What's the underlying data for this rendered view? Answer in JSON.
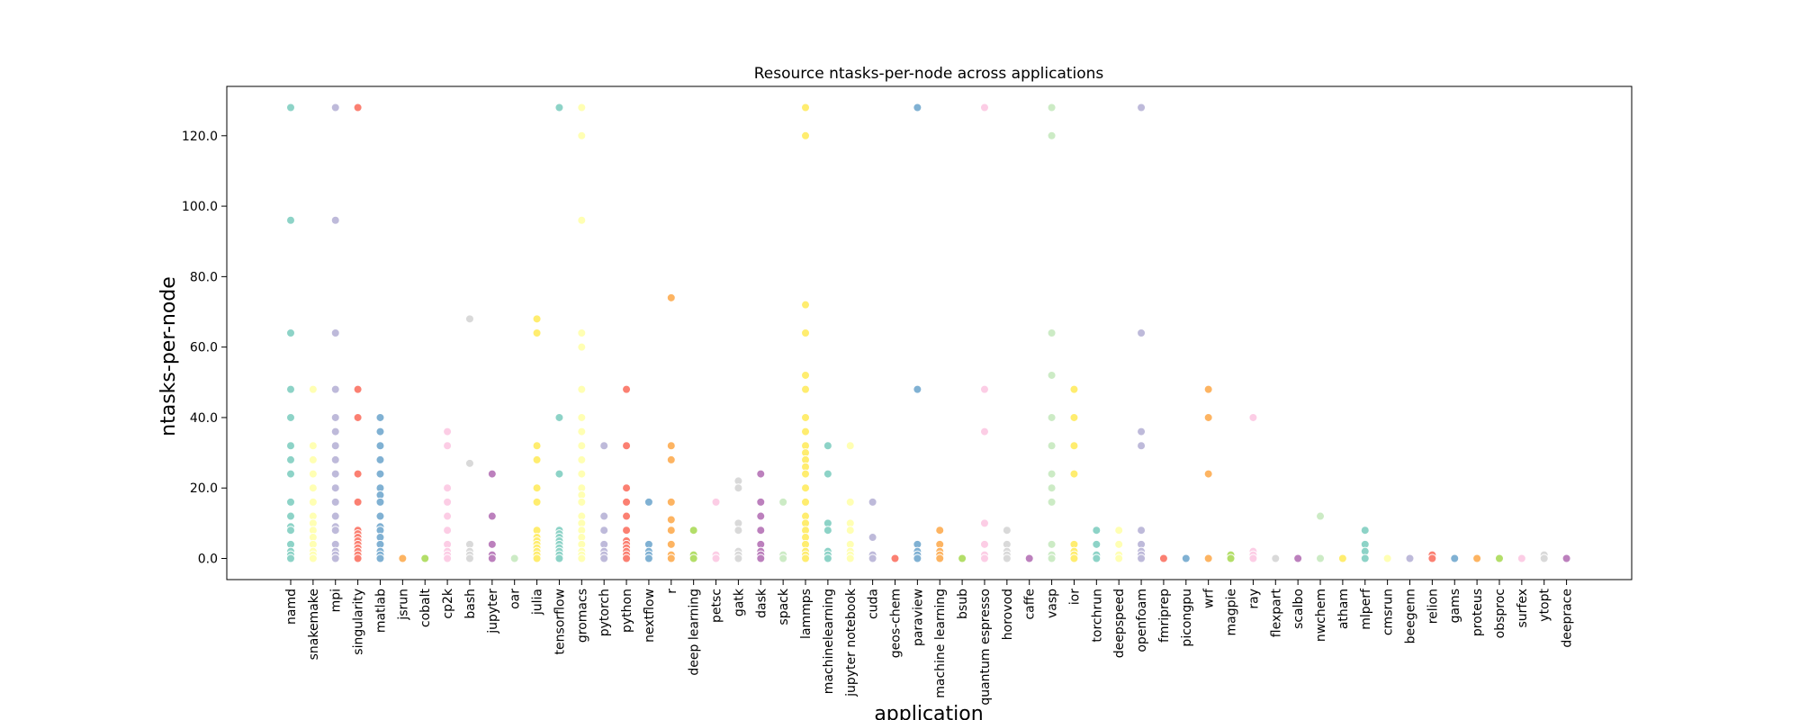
{
  "chart_data": {
    "type": "scatter",
    "title": "Resource ntasks-per-node across applications",
    "xlabel": "application",
    "ylabel": "ntasks-per-node",
    "ylim": [
      -6,
      134
    ],
    "yticks": [
      0,
      20,
      40,
      60,
      80,
      100,
      120
    ],
    "ytick_labels": [
      "0.0",
      "20.0",
      "40.0",
      "60.0",
      "80.0",
      "100.0",
      "120.0"
    ],
    "grid": false,
    "legend": "none",
    "palette": [
      "#8dd3c7",
      "#ffffb3",
      "#bebada",
      "#fb8072",
      "#80b1d3",
      "#fdb462",
      "#b3de69",
      "#fccde5",
      "#d9d9d9",
      "#bc80bd",
      "#ccebc5",
      "#ffed6f"
    ],
    "categories": [
      "namd",
      "snakemake",
      "mpi",
      "singularity",
      "matlab",
      "jsrun",
      "cobalt",
      "cp2k",
      "bash",
      "jupyter",
      "oar",
      "julia",
      "tensorflow",
      "gromacs",
      "pytorch",
      "python",
      "nextflow",
      "r",
      "deep learning",
      "petsc",
      "gatk",
      "dask",
      "spack",
      "lammps",
      "machinelearning",
      "jupyter notebook",
      "cuda",
      "geos-chem",
      "paraview",
      "machine learning",
      "bsub",
      "quantum espresso",
      "horovod",
      "caffe",
      "vasp",
      "ior",
      "torchrun",
      "deepspeed",
      "openfoam",
      "fmriprep",
      "picongpu",
      "wrf",
      "magpie",
      "ray",
      "flexpart",
      "scalbo",
      "nwchem",
      "atham",
      "mlperf",
      "cmsrun",
      "beegenn",
      "relion",
      "gams",
      "proteus",
      "obsproc",
      "surfex",
      "ytopt",
      "deeprace"
    ],
    "series": [
      {
        "values": [
          [
            128,
            96,
            64,
            48,
            40,
            32,
            28,
            24,
            16,
            12,
            9,
            8,
            4,
            2,
            1,
            0
          ],
          [
            48,
            32,
            28,
            24,
            20,
            16,
            12,
            10,
            8,
            6,
            4,
            2,
            1,
            0
          ],
          [
            128,
            96,
            64,
            48,
            40,
            36,
            32,
            28,
            24,
            20,
            16,
            12,
            9,
            8,
            4,
            2,
            1,
            0
          ],
          [
            128,
            48,
            40,
            24,
            16,
            8,
            7,
            6,
            5,
            4,
            3,
            2,
            1,
            0
          ],
          [
            40,
            36,
            32,
            28,
            24,
            20,
            18,
            16,
            12,
            9,
            8,
            6,
            4,
            2,
            1,
            0
          ],
          [
            0
          ],
          [
            0
          ],
          [
            36,
            32,
            20,
            16,
            12,
            8,
            4,
            2,
            1,
            0
          ],
          [
            68,
            27,
            4,
            2,
            1,
            0
          ],
          [
            24,
            12,
            4,
            1,
            0
          ],
          [
            0
          ],
          [
            68,
            64,
            32,
            28,
            20,
            16,
            8,
            6,
            5,
            4,
            3,
            2,
            1,
            0
          ],
          [
            128,
            40,
            24,
            8,
            7,
            6,
            5,
            4,
            3,
            2,
            1,
            0
          ],
          [
            128,
            120,
            96,
            64,
            60,
            48,
            40,
            36,
            32,
            28,
            24,
            20,
            18,
            16,
            12,
            10,
            8,
            6,
            4,
            2,
            1,
            0
          ],
          [
            32,
            12,
            8,
            4,
            2,
            1,
            0
          ],
          [
            48,
            32,
            20,
            16,
            12,
            8,
            5,
            4,
            3,
            2,
            1,
            0
          ],
          [
            16,
            4,
            2,
            1,
            0
          ],
          [
            74,
            32,
            28,
            16,
            11,
            8,
            4,
            1,
            0
          ],
          [
            8,
            1,
            0
          ],
          [
            16,
            1,
            0
          ],
          [
            22,
            20,
            10,
            8,
            2,
            1,
            0
          ],
          [
            24,
            16,
            12,
            8,
            4,
            2,
            1,
            0
          ],
          [
            16,
            1,
            0
          ],
          [
            128,
            120,
            72,
            64,
            52,
            48,
            40,
            36,
            32,
            30,
            28,
            26,
            24,
            20,
            16,
            12,
            10,
            8,
            6,
            4,
            2,
            1,
            0
          ],
          [
            32,
            24,
            10,
            8,
            2,
            1,
            0
          ],
          [
            32,
            16,
            10,
            8,
            4,
            2,
            1,
            0
          ],
          [
            16,
            6,
            1,
            0
          ],
          [
            0
          ],
          [
            128,
            48,
            4,
            2,
            1,
            0
          ],
          [
            8,
            4,
            2,
            1,
            0
          ],
          [
            0
          ],
          [
            128,
            48,
            36,
            10,
            4,
            1,
            0
          ],
          [
            8,
            4,
            2,
            1,
            0
          ],
          [
            0
          ],
          [
            128,
            120,
            64,
            52,
            40,
            32,
            24,
            20,
            16,
            4,
            1,
            0
          ],
          [
            48,
            40,
            32,
            24,
            4,
            2,
            1,
            0
          ],
          [
            8,
            4,
            1,
            0
          ],
          [
            8,
            4,
            1,
            0
          ],
          [
            128,
            64,
            36,
            32,
            8,
            4,
            2,
            1,
            0
          ],
          [
            0
          ],
          [
            0
          ],
          [
            48,
            40,
            24,
            0
          ],
          [
            1,
            0
          ],
          [
            40,
            2,
            1,
            0
          ],
          [
            0
          ],
          [
            0
          ],
          [
            12,
            0
          ],
          [
            0
          ],
          [
            8,
            4,
            2,
            0
          ],
          [
            0
          ],
          [
            0
          ],
          [
            1,
            0
          ],
          [
            0
          ],
          [
            0
          ],
          [
            0
          ],
          [
            0
          ],
          [
            1,
            0
          ],
          [
            0
          ]
        ]
      }
    ]
  }
}
